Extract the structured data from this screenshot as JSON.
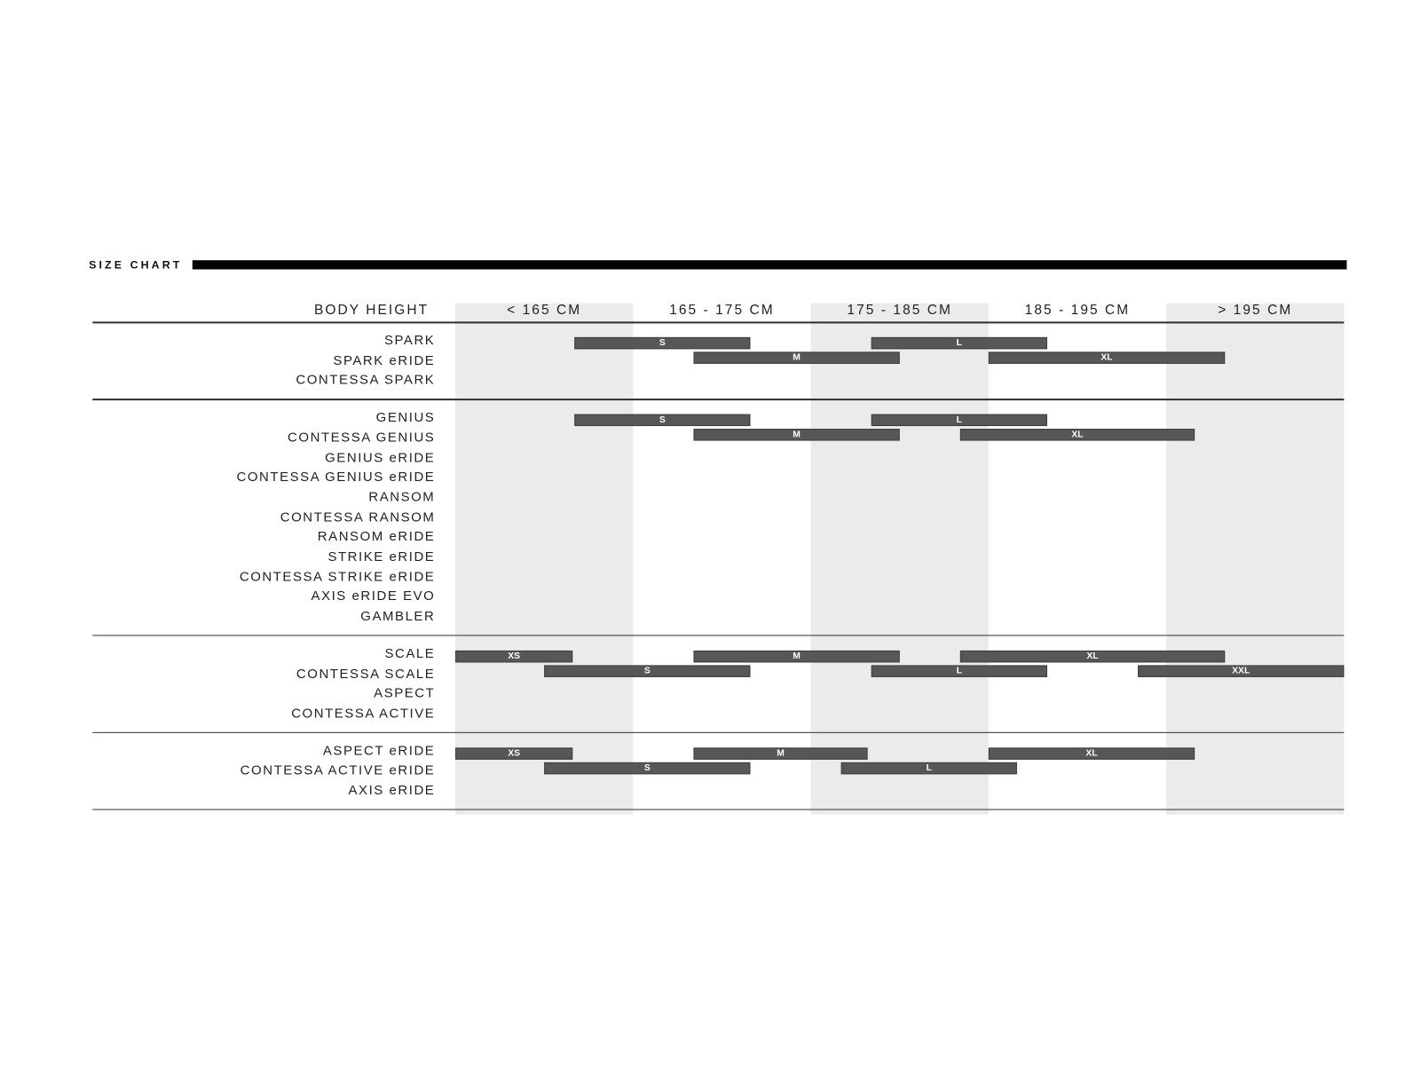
{
  "chart_data": {
    "type": "range-bar",
    "title": "SIZE CHART",
    "row_header": "BODY HEIGHT",
    "columns": [
      "< 165 CM",
      "165 - 175 CM",
      "175 - 185 CM",
      "185 - 195 CM",
      "> 195 CM"
    ],
    "unit": "cm",
    "x_range": [
      155,
      205
    ],
    "column_fill": "#ebebeb",
    "bar_color": "#575757",
    "groups": [
      {
        "models": [
          "SPARK",
          "SPARK eRIDE",
          "CONTESSA SPARK"
        ],
        "sizes": [
          {
            "size": "S",
            "from": 161.7,
            "to": 171.6
          },
          {
            "size": "M",
            "from": 168.4,
            "to": 180
          },
          {
            "size": "L",
            "from": 178.4,
            "to": 188.3
          },
          {
            "size": "XL",
            "from": 185,
            "to": 198.3
          }
        ]
      },
      {
        "models": [
          "GENIUS",
          "CONTESSA GENIUS",
          "GENIUS eRIDE",
          "CONTESSA GENIUS eRIDE",
          "RANSOM",
          "CONTESSA RANSOM",
          "RANSOM eRIDE",
          "STRIKE eRIDE",
          "CONTESSA STRIKE eRIDE",
          "AXIS eRIDE EVO",
          "GAMBLER"
        ],
        "sizes": [
          {
            "size": "S",
            "from": 161.7,
            "to": 171.6
          },
          {
            "size": "M",
            "from": 168.4,
            "to": 180
          },
          {
            "size": "L",
            "from": 178.4,
            "to": 188.3
          },
          {
            "size": "XL",
            "from": 183.4,
            "to": 196.6
          }
        ]
      },
      {
        "models": [
          "SCALE",
          "CONTESSA SCALE",
          "ASPECT",
          "CONTESSA ACTIVE"
        ],
        "sizes": [
          {
            "size": "XS",
            "from": 155,
            "to": 161.6
          },
          {
            "size": "S",
            "from": 160,
            "to": 171.6
          },
          {
            "size": "M",
            "from": 168.4,
            "to": 180
          },
          {
            "size": "L",
            "from": 178.4,
            "to": 188.3
          },
          {
            "size": "XL",
            "from": 183.4,
            "to": 198.3
          },
          {
            "size": "XXL",
            "from": 193.4,
            "to": 205
          }
        ]
      },
      {
        "models": [
          "ASPECT eRIDE",
          "CONTESSA ACTIVE eRIDE",
          "AXIS eRIDE"
        ],
        "sizes": [
          {
            "size": "XS",
            "from": 155,
            "to": 161.6
          },
          {
            "size": "S",
            "from": 160,
            "to": 171.6
          },
          {
            "size": "M",
            "from": 168.4,
            "to": 178.2
          },
          {
            "size": "L",
            "from": 176.7,
            "to": 186.6
          },
          {
            "size": "XL",
            "from": 185,
            "to": 196.6
          }
        ]
      }
    ]
  }
}
